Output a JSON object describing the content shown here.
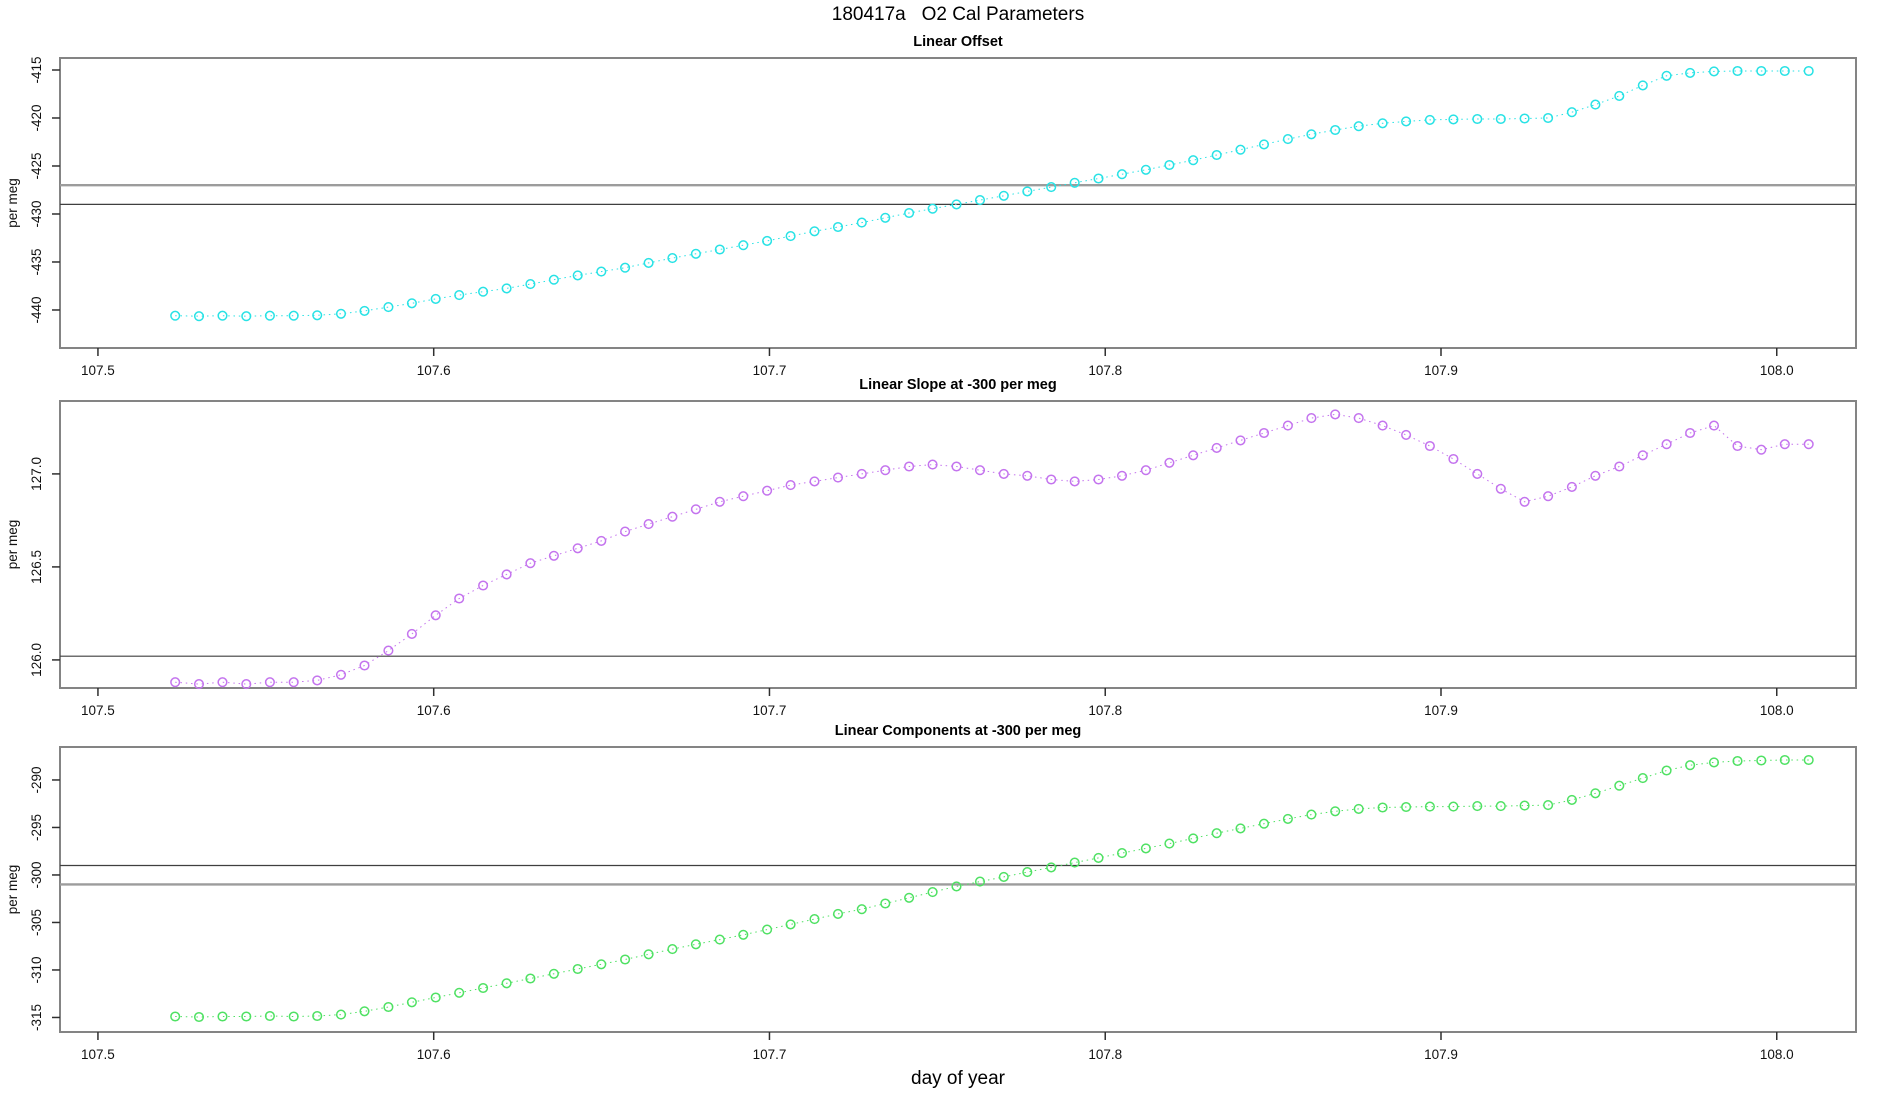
{
  "title": "180417a   O2 Cal Parameters",
  "xlabel": "day of year",
  "x_ticks": [
    107.5,
    107.6,
    107.7,
    107.8,
    107.9,
    108.0
  ],
  "x_tick_labels": [
    "107.5",
    "107.6",
    "107.7",
    "107.8",
    "107.9",
    "108.0"
  ],
  "chart_data": [
    {
      "type": "scatter",
      "title": "Linear Offset",
      "ylabel": "per meg",
      "series_color": "#28E2E5",
      "point_style": "open-circle",
      "connector": "dotted",
      "legend": "none",
      "grid": "off",
      "xlim": [
        107.4887,
        108.0236
      ],
      "ylim": [
        -443.96,
        -413.75
      ],
      "yticks": [
        -415,
        -420,
        -425,
        -430,
        -435,
        -440
      ],
      "ytick_labels": [
        "-415",
        "-420",
        "-425",
        "-430",
        "-435",
        "-440"
      ],
      "hlines": [
        {
          "value": -427.0,
          "color": "#9C9C9C",
          "width": 2.4
        },
        {
          "value": -429.0,
          "color": "#3F3F3F",
          "width": 1.2
        }
      ],
      "x": [
        107.523,
        107.5301,
        107.5371,
        107.5442,
        107.5512,
        107.5583,
        107.5653,
        107.5724,
        107.5794,
        107.5865,
        107.5935,
        107.6006,
        107.6076,
        107.6147,
        107.6217,
        107.6288,
        107.6358,
        107.6429,
        107.6499,
        107.657,
        107.664,
        107.6711,
        107.6781,
        107.6852,
        107.6922,
        107.6993,
        107.7063,
        107.7134,
        107.7204,
        107.7275,
        107.7345,
        107.7416,
        107.7486,
        107.7557,
        107.7627,
        107.7698,
        107.7768,
        107.7839,
        107.7909,
        107.798,
        107.805,
        107.8121,
        107.8191,
        107.8262,
        107.8332,
        107.8403,
        107.8473,
        107.8544,
        107.8614,
        107.8685,
        107.8755,
        107.8826,
        107.8896,
        107.8967,
        107.9037,
        107.9108,
        107.9178,
        107.9249,
        107.9319,
        107.939,
        107.946,
        107.9531,
        107.9601,
        107.9672,
        107.9742,
        107.9813,
        107.9883,
        107.9954,
        108.0024,
        108.0095
      ],
      "y": [
        -440.6,
        -440.65,
        -440.6,
        -440.65,
        -440.6,
        -440.6,
        -440.55,
        -440.4,
        -440.1,
        -439.7,
        -439.3,
        -438.85,
        -438.45,
        -438.1,
        -437.75,
        -437.3,
        -436.85,
        -436.4,
        -436.0,
        -435.6,
        -435.1,
        -434.6,
        -434.15,
        -433.7,
        -433.25,
        -432.8,
        -432.3,
        -431.8,
        -431.35,
        -430.9,
        -430.4,
        -429.9,
        -429.45,
        -429.0,
        -428.55,
        -428.1,
        -427.65,
        -427.2,
        -426.75,
        -426.3,
        -425.85,
        -425.4,
        -424.9,
        -424.4,
        -423.85,
        -423.3,
        -422.75,
        -422.2,
        -421.7,
        -421.25,
        -420.85,
        -420.55,
        -420.35,
        -420.2,
        -420.15,
        -420.1,
        -420.1,
        -420.05,
        -420.0,
        -419.4,
        -418.6,
        -417.7,
        -416.6,
        -415.6,
        -415.3,
        -415.15,
        -415.1,
        -415.1,
        -415.1,
        -415.1
      ]
    },
    {
      "type": "scatter",
      "title": "Linear Slope at -300 per meg",
      "ylabel": "per meg",
      "series_color": "#C474EE",
      "point_style": "open-circle",
      "connector": "dotted",
      "legend": "none",
      "grid": "off",
      "xlim": [
        107.4887,
        108.0236
      ],
      "ylim": [
        125.849,
        127.392
      ],
      "yticks": [
        127.0,
        126.5,
        126.0
      ],
      "ytick_labels": [
        "127.0",
        "126.5",
        "126.0"
      ],
      "hlines": [
        {
          "value": 126.02,
          "color": "#3F3F3F",
          "width": 1.2
        }
      ],
      "x": [
        107.523,
        107.5301,
        107.5371,
        107.5442,
        107.5512,
        107.5583,
        107.5653,
        107.5724,
        107.5794,
        107.5865,
        107.5935,
        107.6006,
        107.6076,
        107.6147,
        107.6217,
        107.6288,
        107.6358,
        107.6429,
        107.6499,
        107.657,
        107.664,
        107.6711,
        107.6781,
        107.6852,
        107.6922,
        107.6993,
        107.7063,
        107.7134,
        107.7204,
        107.7275,
        107.7345,
        107.7416,
        107.7486,
        107.7557,
        107.7627,
        107.7698,
        107.7768,
        107.7839,
        107.7909,
        107.798,
        107.805,
        107.8121,
        107.8191,
        107.8262,
        107.8332,
        107.8403,
        107.8473,
        107.8544,
        107.8614,
        107.8685,
        107.8755,
        107.8826,
        107.8896,
        107.8967,
        107.9037,
        107.9108,
        107.9178,
        107.9249,
        107.9319,
        107.939,
        107.946,
        107.9531,
        107.9601,
        107.9672,
        107.9742,
        107.9813,
        107.9883,
        107.9954,
        108.0024,
        108.0095
      ],
      "y": [
        125.88,
        125.87,
        125.88,
        125.87,
        125.88,
        125.88,
        125.89,
        125.92,
        125.97,
        126.05,
        126.14,
        126.24,
        126.33,
        126.4,
        126.46,
        126.52,
        126.56,
        126.6,
        126.64,
        126.69,
        126.73,
        126.77,
        126.81,
        126.85,
        126.88,
        126.91,
        126.94,
        126.96,
        126.98,
        127.0,
        127.02,
        127.04,
        127.05,
        127.04,
        127.02,
        127.0,
        126.99,
        126.97,
        126.96,
        126.97,
        126.99,
        127.02,
        127.06,
        127.1,
        127.14,
        127.18,
        127.22,
        127.26,
        127.3,
        127.32,
        127.3,
        127.26,
        127.21,
        127.15,
        127.08,
        127.0,
        126.92,
        126.85,
        126.88,
        126.93,
        126.99,
        127.04,
        127.1,
        127.16,
        127.22,
        127.26,
        127.15,
        127.13,
        127.16,
        127.16
      ]
    },
    {
      "type": "scatter",
      "title": "Linear Components at -300 per meg",
      "ylabel": "per meg",
      "series_color": "#4FE163",
      "point_style": "open-circle",
      "connector": "dotted",
      "legend": "none",
      "grid": "off",
      "xlim": [
        107.4887,
        108.0236
      ],
      "ylim": [
        -316.53,
        -286.53
      ],
      "yticks": [
        -290,
        -295,
        -300,
        -305,
        -310,
        -315
      ],
      "ytick_labels": [
        "-290",
        "-295",
        "-300",
        "-305",
        "-310",
        "-315"
      ],
      "hlines": [
        {
          "value": -299.0,
          "color": "#3F3F3F",
          "width": 1.2
        },
        {
          "value": -301.0,
          "color": "#9C9C9C",
          "width": 2.4
        }
      ],
      "x": [
        107.523,
        107.5301,
        107.5371,
        107.5442,
        107.5512,
        107.5583,
        107.5653,
        107.5724,
        107.5794,
        107.5865,
        107.5935,
        107.6006,
        107.6076,
        107.6147,
        107.6217,
        107.6288,
        107.6358,
        107.6429,
        107.6499,
        107.657,
        107.664,
        107.6711,
        107.6781,
        107.6852,
        107.6922,
        107.6993,
        107.7063,
        107.7134,
        107.7204,
        107.7275,
        107.7345,
        107.7416,
        107.7486,
        107.7557,
        107.7627,
        107.7698,
        107.7768,
        107.7839,
        107.7909,
        107.798,
        107.805,
        107.8121,
        107.8191,
        107.8262,
        107.8332,
        107.8403,
        107.8473,
        107.8544,
        107.8614,
        107.8685,
        107.8755,
        107.8826,
        107.8896,
        107.8967,
        107.9037,
        107.9108,
        107.9178,
        107.9249,
        107.9319,
        107.939,
        107.946,
        107.9531,
        107.9601,
        107.9672,
        107.9742,
        107.9813,
        107.9883,
        107.9954,
        108.0024,
        108.0095
      ],
      "y": [
        -314.9,
        -314.95,
        -314.9,
        -314.9,
        -314.85,
        -314.9,
        -314.85,
        -314.7,
        -314.35,
        -313.9,
        -313.4,
        -312.9,
        -312.4,
        -311.9,
        -311.4,
        -310.9,
        -310.4,
        -309.9,
        -309.4,
        -308.9,
        -308.35,
        -307.8,
        -307.3,
        -306.8,
        -306.3,
        -305.75,
        -305.2,
        -304.65,
        -304.1,
        -303.6,
        -303.0,
        -302.4,
        -301.8,
        -301.2,
        -300.7,
        -300.2,
        -299.7,
        -299.2,
        -298.7,
        -298.2,
        -297.7,
        -297.2,
        -296.7,
        -296.15,
        -295.6,
        -295.1,
        -294.6,
        -294.1,
        -293.65,
        -293.3,
        -293.05,
        -292.9,
        -292.85,
        -292.8,
        -292.8,
        -292.75,
        -292.75,
        -292.7,
        -292.65,
        -292.1,
        -291.4,
        -290.6,
        -289.8,
        -289.0,
        -288.45,
        -288.15,
        -288.0,
        -287.95,
        -287.9,
        -287.9
      ]
    }
  ]
}
